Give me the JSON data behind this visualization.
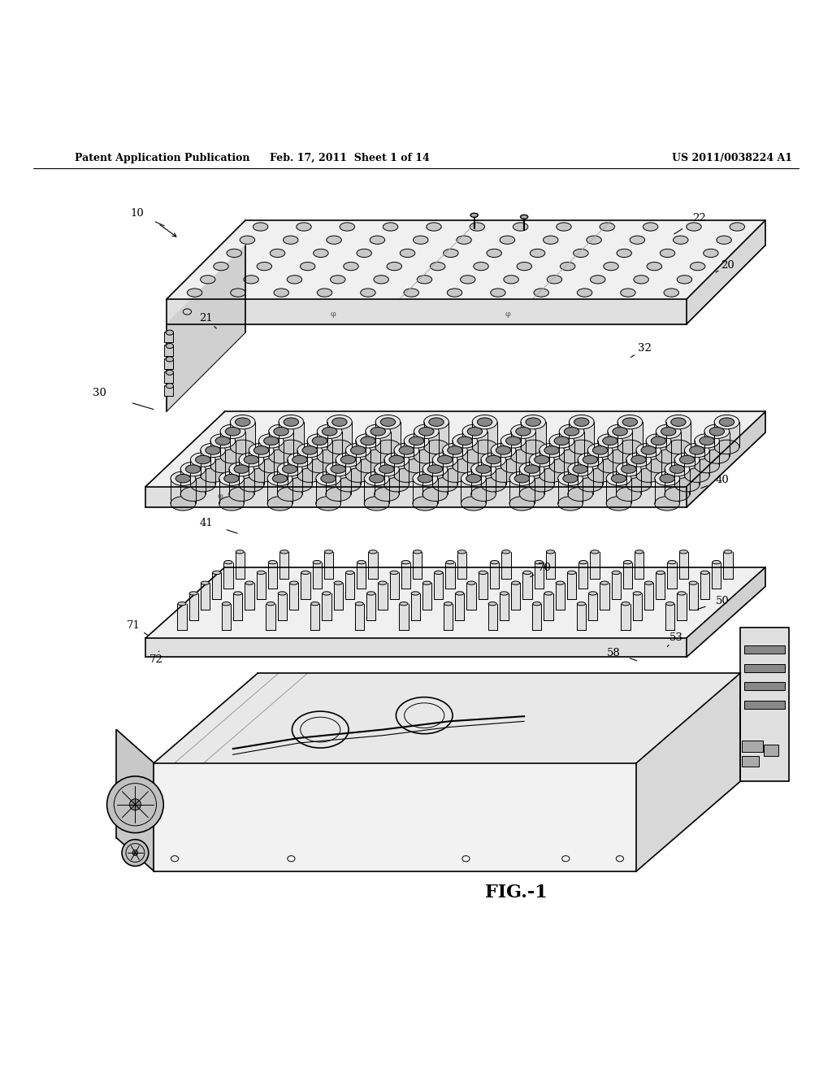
{
  "bg_color": "#ffffff",
  "line_color": "#000000",
  "header_left": "Patent Application Publication",
  "header_mid": "Feb. 17, 2011  Sheet 1 of 14",
  "header_right": "US 2011/0038224 A1",
  "figure_label": "FIG.-1",
  "lw_main": 1.2,
  "lw_thin": 0.7
}
